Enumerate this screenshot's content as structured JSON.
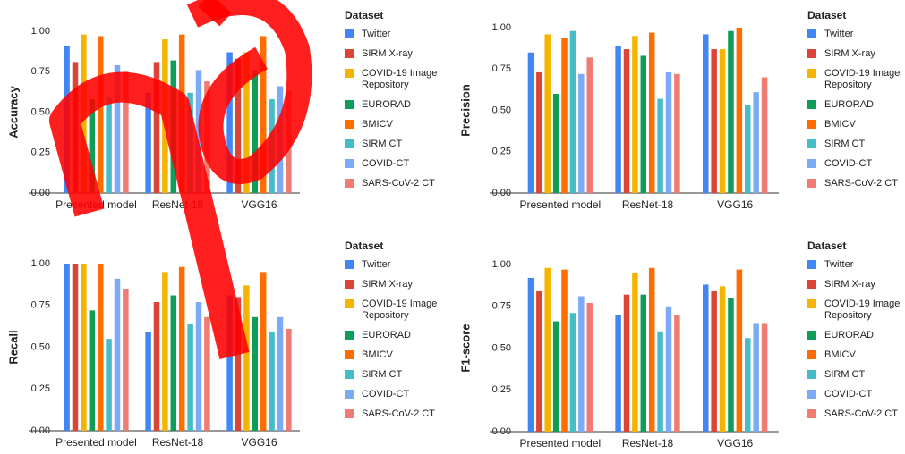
{
  "chart_data": [
    {
      "type": "bar",
      "y_label": "Accuracy",
      "legend_title": "Dataset",
      "categories": [
        "Presented model",
        "ResNet-18",
        "VGG16"
      ],
      "ylim": [
        0,
        1
      ],
      "grid": false,
      "yticks": [
        {
          "value": 0,
          "label": "0.00"
        },
        {
          "value": 0.25,
          "label": "0.25"
        },
        {
          "value": 0.5,
          "label": "0.50"
        },
        {
          "value": 0.75,
          "label": "0.75"
        },
        {
          "value": 1,
          "label": "1.00"
        }
      ],
      "series": [
        {
          "name": "Twitter",
          "color": "#4285f4",
          "values": [
            0.91,
            0.62,
            0.87
          ]
        },
        {
          "name": "SIRM X-ray",
          "color": "#db4437",
          "values": [
            0.81,
            0.81,
            0.83
          ]
        },
        {
          "name": "COVID-19 Image Repository",
          "color": "#f4b400",
          "values": [
            0.98,
            0.95,
            0.87
          ]
        },
        {
          "name": "EURORAD",
          "color": "#0f9d58",
          "values": [
            0.58,
            0.82,
            0.76
          ]
        },
        {
          "name": "BMICV",
          "color": "#ff6d01",
          "values": [
            0.97,
            0.98,
            0.97
          ]
        },
        {
          "name": "SIRM CT",
          "color": "#46bdc6",
          "values": [
            0.59,
            0.62,
            0.58
          ]
        },
        {
          "name": "COVID-CT",
          "color": "#7baaf7",
          "values": [
            0.79,
            0.76,
            0.66
          ]
        },
        {
          "name": "SARS-CoV-2 CT",
          "color": "#f07b72",
          "values": [
            0.75,
            0.69,
            0.63
          ]
        }
      ]
    },
    {
      "type": "bar",
      "y_label": "Precision",
      "legend_title": "Dataset",
      "categories": [
        "Presented model",
        "ResNet-18",
        "VGG16"
      ],
      "ylim": [
        0,
        1
      ],
      "grid": false,
      "yticks": [
        {
          "value": 0,
          "label": "0.00"
        },
        {
          "value": 0.25,
          "label": "0.25"
        },
        {
          "value": 0.5,
          "label": "0.50"
        },
        {
          "value": 0.75,
          "label": "0.75"
        },
        {
          "value": 1,
          "label": "1.00"
        }
      ],
      "series": [
        {
          "name": "Twitter",
          "color": "#4285f4",
          "values": [
            0.85,
            0.89,
            0.96
          ]
        },
        {
          "name": "SIRM X-ray",
          "color": "#db4437",
          "values": [
            0.73,
            0.87,
            0.87
          ]
        },
        {
          "name": "COVID-19 Image Repository",
          "color": "#f4b400",
          "values": [
            0.96,
            0.95,
            0.87
          ]
        },
        {
          "name": "EURORAD",
          "color": "#0f9d58",
          "values": [
            0.6,
            0.83,
            0.98
          ]
        },
        {
          "name": "BMICV",
          "color": "#ff6d01",
          "values": [
            0.94,
            0.97,
            1.0
          ]
        },
        {
          "name": "SIRM CT",
          "color": "#46bdc6",
          "values": [
            0.98,
            0.57,
            0.53
          ]
        },
        {
          "name": "COVID-CT",
          "color": "#7baaf7",
          "values": [
            0.72,
            0.73,
            0.61
          ]
        },
        {
          "name": "SARS-CoV-2 CT",
          "color": "#f07b72",
          "values": [
            0.82,
            0.72,
            0.7
          ]
        }
      ]
    },
    {
      "type": "bar",
      "y_label": "Recall",
      "legend_title": "Dataset",
      "categories": [
        "Presented model",
        "ResNet-18",
        "VGG16"
      ],
      "ylim": [
        0,
        1
      ],
      "grid": false,
      "yticks": [
        {
          "value": 0,
          "label": "0.00"
        },
        {
          "value": 0.25,
          "label": "0.25"
        },
        {
          "value": 0.5,
          "label": "0.50"
        },
        {
          "value": 0.75,
          "label": "0.75"
        },
        {
          "value": 1,
          "label": "1.00"
        }
      ],
      "series": [
        {
          "name": "Twitter",
          "color": "#4285f4",
          "values": [
            1.0,
            0.59,
            0.81
          ]
        },
        {
          "name": "SIRM X-ray",
          "color": "#db4437",
          "values": [
            1.0,
            0.77,
            0.8
          ]
        },
        {
          "name": "COVID-19 Image Repository",
          "color": "#f4b400",
          "values": [
            1.0,
            0.95,
            0.87
          ]
        },
        {
          "name": "EURORAD",
          "color": "#0f9d58",
          "values": [
            0.72,
            0.81,
            0.68
          ]
        },
        {
          "name": "BMICV",
          "color": "#ff6d01",
          "values": [
            1.0,
            0.98,
            0.95
          ]
        },
        {
          "name": "SIRM CT",
          "color": "#46bdc6",
          "values": [
            0.55,
            0.64,
            0.59
          ]
        },
        {
          "name": "COVID-CT",
          "color": "#7baaf7",
          "values": [
            0.91,
            0.77,
            0.68
          ]
        },
        {
          "name": "SARS-CoV-2 CT",
          "color": "#f07b72",
          "values": [
            0.85,
            0.68,
            0.61
          ]
        }
      ]
    },
    {
      "type": "bar",
      "y_label": "F1-score",
      "legend_title": "Dataset",
      "categories": [
        "Presented model",
        "ResNet-18",
        "VGG16"
      ],
      "ylim": [
        0,
        1
      ],
      "grid": false,
      "yticks": [
        {
          "value": 0,
          "label": "0.00"
        },
        {
          "value": 0.25,
          "label": "0.25"
        },
        {
          "value": 0.5,
          "label": "0.50"
        },
        {
          "value": 0.75,
          "label": "0.75"
        },
        {
          "value": 1,
          "label": "1.00"
        }
      ],
      "series": [
        {
          "name": "Twitter",
          "color": "#4285f4",
          "values": [
            0.92,
            0.7,
            0.88
          ]
        },
        {
          "name": "SIRM X-ray",
          "color": "#db4437",
          "values": [
            0.84,
            0.82,
            0.84
          ]
        },
        {
          "name": "COVID-19 Image Repository",
          "color": "#f4b400",
          "values": [
            0.98,
            0.95,
            0.87
          ]
        },
        {
          "name": "EURORAD",
          "color": "#0f9d58",
          "values": [
            0.66,
            0.82,
            0.8
          ]
        },
        {
          "name": "BMICV",
          "color": "#ff6d01",
          "values": [
            0.97,
            0.98,
            0.97
          ]
        },
        {
          "name": "SIRM CT",
          "color": "#46bdc6",
          "values": [
            0.71,
            0.6,
            0.56
          ]
        },
        {
          "name": "COVID-CT",
          "color": "#7baaf7",
          "values": [
            0.81,
            0.75,
            0.65
          ]
        },
        {
          "name": "SARS-CoV-2 CT",
          "color": "#f07b72",
          "values": [
            0.77,
            0.7,
            0.65
          ]
        }
      ]
    }
  ]
}
